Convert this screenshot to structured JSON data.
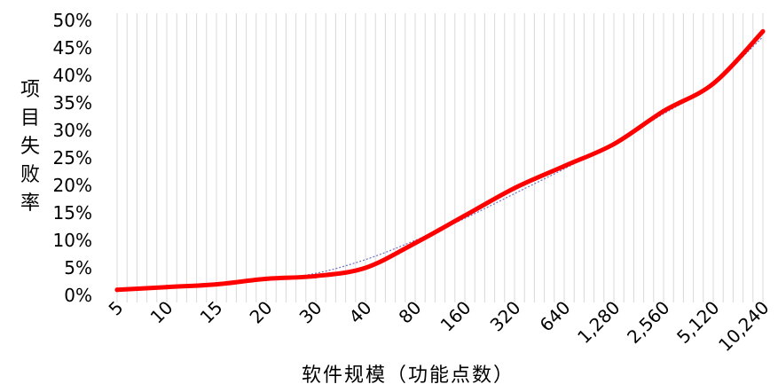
{
  "chart_data": {
    "type": "line",
    "title": "",
    "xlabel": "软件规模（功能点数）",
    "ylabel": "项目失败率",
    "categories": [
      "5",
      "10",
      "15",
      "20",
      "30",
      "40",
      "80",
      "160",
      "320",
      "640",
      "1,280",
      "2,560",
      "5,120",
      "10,240"
    ],
    "y_ticks": [
      "0%",
      "5%",
      "10%",
      "15%",
      "20%",
      "25%",
      "30%",
      "35%",
      "40%",
      "45%",
      "50%"
    ],
    "ylim": [
      0,
      50
    ],
    "grid": "vertical",
    "legend": "none",
    "series": [
      {
        "values": [
          1.0,
          1.5,
          2.0,
          3.0,
          3.5,
          5.0,
          9.5,
          14.5,
          19.5,
          23.5,
          27.5,
          33.5,
          38.5,
          48.0
        ],
        "color": "#ff0000"
      }
    ],
    "trendline": {
      "values": [
        1.0,
        1.3,
        1.8,
        2.8,
        4.0,
        6.5,
        10.0,
        14.0,
        18.5,
        23.0,
        27.8,
        33.0,
        38.5,
        47.0
      ],
      "color": "#7070c0",
      "style": "dotted"
    }
  }
}
